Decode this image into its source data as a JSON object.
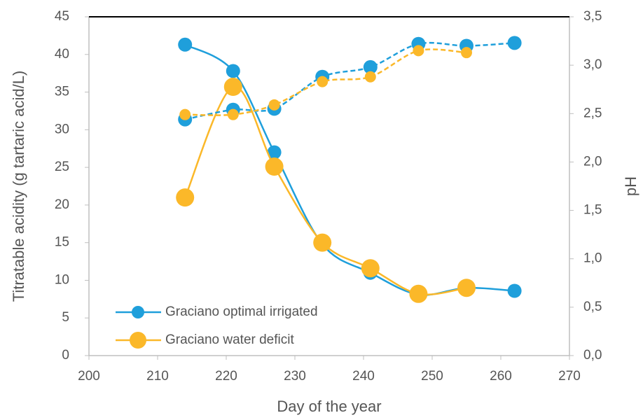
{
  "chart_data": {
    "type": "line",
    "x_label": "Day of the year",
    "y_label": "Titratable acidity (g tartaric acid/L)",
    "y2_label": "pH",
    "x": [
      214,
      221,
      227,
      234,
      241,
      248,
      255,
      262
    ],
    "xlim": [
      200,
      270
    ],
    "xticks": [
      200,
      210,
      220,
      230,
      240,
      250,
      260,
      270
    ],
    "ylim": [
      0,
      45
    ],
    "yticks": [
      0,
      5,
      10,
      15,
      20,
      25,
      30,
      35,
      40,
      45
    ],
    "y2lim": [
      0,
      3.5
    ],
    "y2ticks": [
      {
        "value": 0,
        "label": "0,0"
      },
      {
        "value": 0.5,
        "label": "0,5"
      },
      {
        "value": 1,
        "label": "1,0"
      },
      {
        "value": 1.5,
        "label": "1,5"
      },
      {
        "value": 2,
        "label": "2,0"
      },
      {
        "value": 2.5,
        "label": "2,5"
      },
      {
        "value": 3,
        "label": "3,0"
      },
      {
        "value": 3.5,
        "label": "3,5"
      }
    ],
    "grid": false,
    "legend": "lower left",
    "series": [
      {
        "name": "Graciano optimal irrigated",
        "color": "#1f9fdb",
        "values": [
          41.3,
          37.8,
          27.0,
          14.8,
          11.0,
          8.1,
          9.0,
          8.6
        ]
      },
      {
        "name": "Graciano water deficit",
        "color": "#fbb829",
        "values": [
          21.0,
          35.7,
          25.1,
          15.0,
          11.6,
          8.2,
          9.0,
          null
        ]
      },
      {
        "color": "#1f9fdb",
        "axis": "y2",
        "dashed": true,
        "values": [
          2.44,
          2.54,
          2.55,
          2.88,
          2.98,
          3.22,
          3.2,
          3.23
        ]
      },
      {
        "color": "#fbb829",
        "axis": "y2",
        "dashed": true,
        "values": [
          2.49,
          2.49,
          2.59,
          2.83,
          2.88,
          3.15,
          3.13,
          null
        ]
      }
    ]
  }
}
